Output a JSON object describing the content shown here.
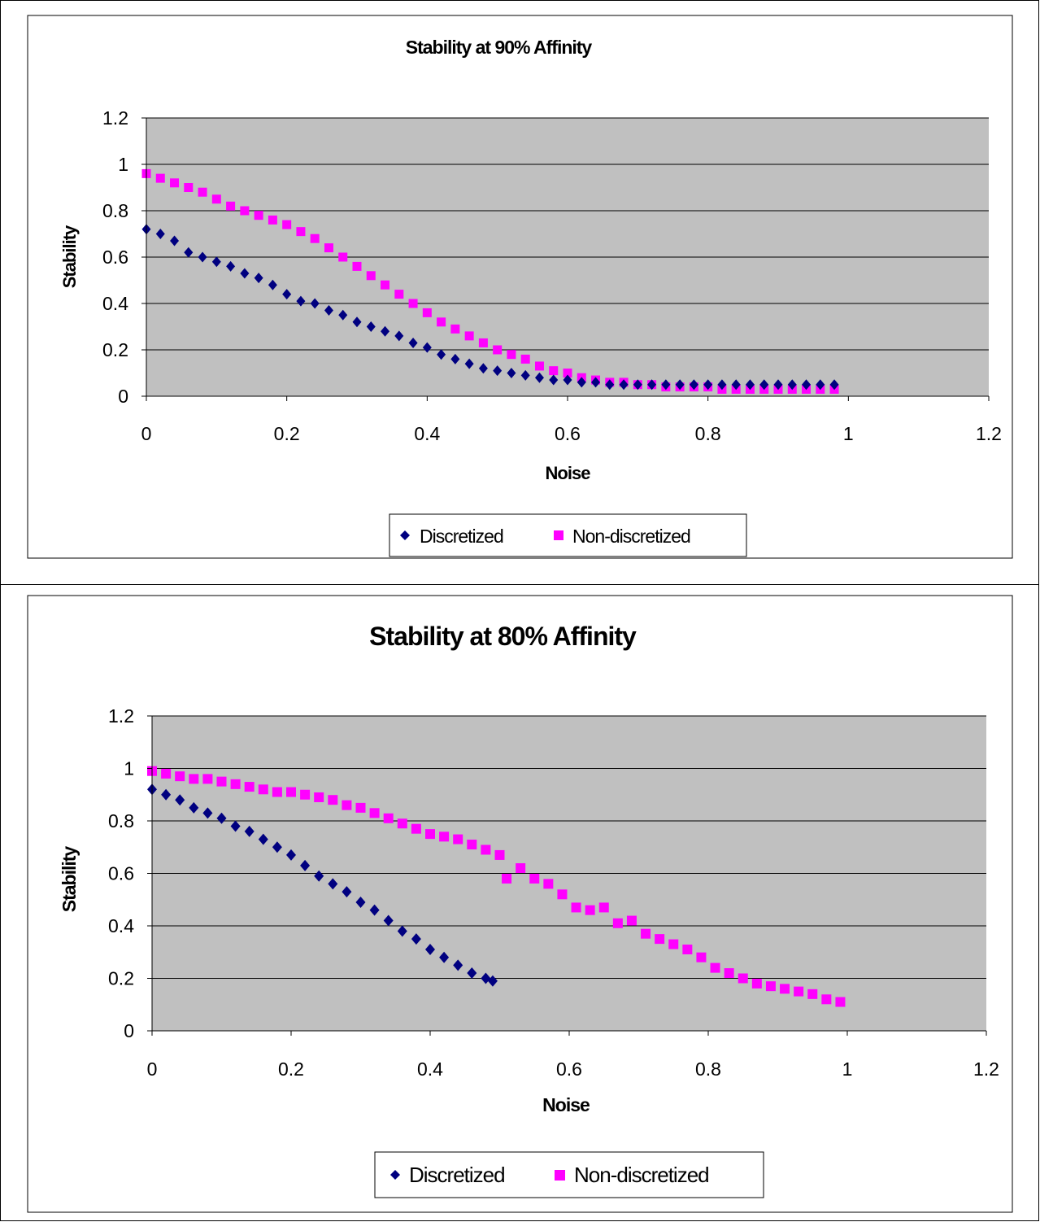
{
  "charts": [
    {
      "title": "Stability at 90% Affinity",
      "xlabel": "Noise",
      "ylabel": "Stability",
      "xticks": [
        "0",
        "0.2",
        "0.4",
        "0.6",
        "0.8",
        "1",
        "1.2"
      ],
      "yticks": [
        "0",
        "0.2",
        "0.4",
        "0.6",
        "0.8",
        "1",
        "1.2"
      ],
      "legend": [
        "Discretized",
        "Non-discretized"
      ]
    },
    {
      "title": "Stability at 80% Affinity",
      "xlabel": "Noise",
      "ylabel": "Stability",
      "xticks": [
        "0",
        "0.2",
        "0.4",
        "0.6",
        "0.8",
        "1",
        "1.2"
      ],
      "yticks": [
        "0",
        "0.2",
        "0.4",
        "0.6",
        "0.8",
        "1",
        "1.2"
      ],
      "legend": [
        "Discretized",
        "Non-discretized"
      ]
    }
  ],
  "chart_data": [
    {
      "type": "scatter",
      "title": "Stability at 90% Affinity",
      "xlabel": "Noise",
      "ylabel": "Stability",
      "xlim": [
        0,
        1.2
      ],
      "ylim": [
        0,
        1.2
      ],
      "grid": "horizontal",
      "legend_position": "bottom",
      "plot_background": "#c0c0c0",
      "series": [
        {
          "name": "Discretized",
          "marker": "diamond",
          "color": "#000080",
          "x": [
            0.0,
            0.02,
            0.04,
            0.06,
            0.08,
            0.1,
            0.12,
            0.14,
            0.16,
            0.18,
            0.2,
            0.22,
            0.24,
            0.26,
            0.28,
            0.3,
            0.32,
            0.34,
            0.36,
            0.38,
            0.4,
            0.42,
            0.44,
            0.46,
            0.48,
            0.5,
            0.52,
            0.54,
            0.56,
            0.58,
            0.6,
            0.62,
            0.64,
            0.66,
            0.68,
            0.7,
            0.72,
            0.74,
            0.76,
            0.78,
            0.8,
            0.82,
            0.84,
            0.86,
            0.88,
            0.9,
            0.92,
            0.94,
            0.96,
            0.98
          ],
          "y": [
            0.72,
            0.7,
            0.67,
            0.62,
            0.6,
            0.58,
            0.56,
            0.53,
            0.51,
            0.48,
            0.44,
            0.41,
            0.4,
            0.37,
            0.35,
            0.32,
            0.3,
            0.28,
            0.26,
            0.23,
            0.21,
            0.18,
            0.16,
            0.14,
            0.12,
            0.11,
            0.1,
            0.09,
            0.08,
            0.07,
            0.07,
            0.06,
            0.06,
            0.05,
            0.05,
            0.05,
            0.05,
            0.05,
            0.05,
            0.05,
            0.05,
            0.05,
            0.05,
            0.05,
            0.05,
            0.05,
            0.05,
            0.05,
            0.05,
            0.05
          ]
        },
        {
          "name": "Non-discretized",
          "marker": "square",
          "color": "#ff00ff",
          "x": [
            0.0,
            0.02,
            0.04,
            0.06,
            0.08,
            0.1,
            0.12,
            0.14,
            0.16,
            0.18,
            0.2,
            0.22,
            0.24,
            0.26,
            0.28,
            0.3,
            0.32,
            0.34,
            0.36,
            0.38,
            0.4,
            0.42,
            0.44,
            0.46,
            0.48,
            0.5,
            0.52,
            0.54,
            0.56,
            0.58,
            0.6,
            0.62,
            0.64,
            0.66,
            0.68,
            0.7,
            0.72,
            0.74,
            0.76,
            0.78,
            0.8,
            0.82,
            0.84,
            0.86,
            0.88,
            0.9,
            0.92,
            0.94,
            0.96,
            0.98
          ],
          "y": [
            0.96,
            0.94,
            0.92,
            0.9,
            0.88,
            0.85,
            0.82,
            0.8,
            0.78,
            0.76,
            0.74,
            0.71,
            0.68,
            0.64,
            0.6,
            0.56,
            0.52,
            0.48,
            0.44,
            0.4,
            0.36,
            0.32,
            0.29,
            0.26,
            0.23,
            0.2,
            0.18,
            0.16,
            0.13,
            0.11,
            0.1,
            0.08,
            0.07,
            0.06,
            0.06,
            0.05,
            0.05,
            0.04,
            0.04,
            0.04,
            0.04,
            0.03,
            0.03,
            0.03,
            0.03,
            0.03,
            0.03,
            0.03,
            0.03,
            0.03
          ]
        }
      ]
    },
    {
      "type": "scatter",
      "title": "Stability at 80% Affinity",
      "xlabel": "Noise",
      "ylabel": "Stability",
      "xlim": [
        0,
        1.2
      ],
      "ylim": [
        0,
        1.2
      ],
      "grid": "horizontal",
      "legend_position": "bottom",
      "plot_background": "#c0c0c0",
      "series": [
        {
          "name": "Discretized",
          "marker": "diamond",
          "color": "#000080",
          "x": [
            0.0,
            0.02,
            0.04,
            0.06,
            0.08,
            0.1,
            0.12,
            0.14,
            0.16,
            0.18,
            0.2,
            0.22,
            0.24,
            0.26,
            0.28,
            0.3,
            0.32,
            0.34,
            0.36,
            0.38,
            0.4,
            0.42,
            0.44,
            0.46,
            0.48,
            0.49
          ],
          "y": [
            0.92,
            0.9,
            0.88,
            0.85,
            0.83,
            0.81,
            0.78,
            0.76,
            0.73,
            0.7,
            0.67,
            0.63,
            0.59,
            0.56,
            0.53,
            0.49,
            0.46,
            0.42,
            0.38,
            0.35,
            0.31,
            0.28,
            0.25,
            0.22,
            0.2,
            0.19
          ]
        },
        {
          "name": "Non-discretized",
          "marker": "square",
          "color": "#ff00ff",
          "x": [
            0.0,
            0.02,
            0.04,
            0.06,
            0.08,
            0.1,
            0.12,
            0.14,
            0.16,
            0.18,
            0.2,
            0.22,
            0.24,
            0.26,
            0.28,
            0.3,
            0.32,
            0.34,
            0.36,
            0.38,
            0.4,
            0.42,
            0.44,
            0.46,
            0.48,
            0.5,
            0.51,
            0.53,
            0.55,
            0.57,
            0.59,
            0.61,
            0.63,
            0.65,
            0.67,
            0.69,
            0.71,
            0.73,
            0.75,
            0.77,
            0.79,
            0.81,
            0.83,
            0.85,
            0.87,
            0.89,
            0.91,
            0.93,
            0.95,
            0.97,
            0.99
          ],
          "y": [
            0.99,
            0.98,
            0.97,
            0.96,
            0.96,
            0.95,
            0.94,
            0.93,
            0.92,
            0.91,
            0.91,
            0.9,
            0.89,
            0.88,
            0.86,
            0.85,
            0.83,
            0.81,
            0.79,
            0.77,
            0.75,
            0.74,
            0.73,
            0.71,
            0.69,
            0.67,
            0.58,
            0.62,
            0.58,
            0.56,
            0.52,
            0.47,
            0.46,
            0.47,
            0.41,
            0.42,
            0.37,
            0.35,
            0.33,
            0.31,
            0.28,
            0.24,
            0.22,
            0.2,
            0.18,
            0.17,
            0.16,
            0.15,
            0.14,
            0.12,
            0.11
          ]
        }
      ]
    }
  ]
}
